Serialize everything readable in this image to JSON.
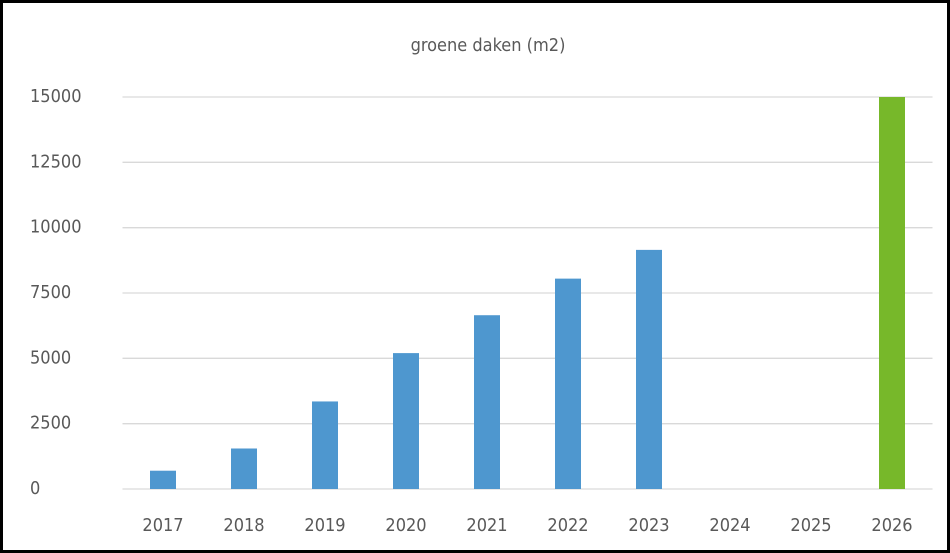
{
  "chart_data": {
    "type": "bar",
    "title": "groene daken (m2)",
    "categories": [
      "2017",
      "2018",
      "2019",
      "2020",
      "2021",
      "2022",
      "2023",
      "2024",
      "2025",
      "2026"
    ],
    "values": [
      700,
      1550,
      3350,
      5200,
      6650,
      8050,
      9150,
      0,
      0,
      15000
    ],
    "colors": [
      "#4e97cf",
      "#4e97cf",
      "#4e97cf",
      "#4e97cf",
      "#4e97cf",
      "#4e97cf",
      "#4e97cf",
      "#4e97cf",
      "#4e97cf",
      "#77b82a"
    ],
    "ylim": [
      0,
      15000
    ],
    "yticks": [
      0,
      2500,
      5000,
      7500,
      10000,
      12500,
      15000
    ],
    "grid": true
  }
}
